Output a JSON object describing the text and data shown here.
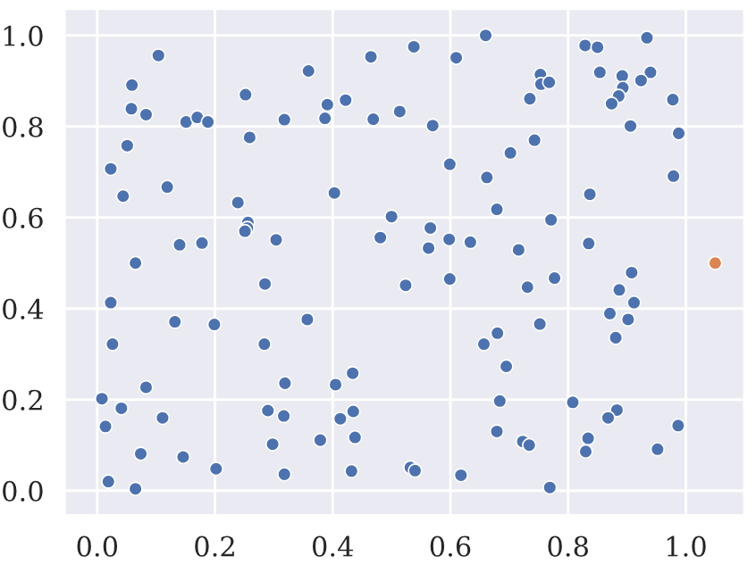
{
  "chart_data": {
    "type": "scatter",
    "xlim": [
      -0.056,
      1.1
    ],
    "ylim": [
      -0.055,
      1.059
    ],
    "xticks": [
      {
        "value": 0,
        "label": "0.0"
      },
      0.2,
      0.4,
      0.6,
      0.8,
      {
        "value": 1,
        "label": "1.0"
      }
    ],
    "yticks": [
      {
        "value": 0,
        "label": "0.0"
      },
      0.2,
      0.4,
      0.6,
      0.8,
      {
        "value": 1,
        "label": "1.0"
      }
    ],
    "grid": true,
    "marker": "circle",
    "series": [
      {
        "color": "#4c72b0",
        "x": [
          0.104,
          0.059,
          0.058,
          0.083,
          0.151,
          0.17,
          0.188,
          0.252,
          0.259,
          0.318,
          0.359,
          0.391,
          0.387,
          0.422,
          0.465,
          0.469,
          0.514,
          0.051,
          0.023,
          0.044,
          0.119,
          0.239,
          0.403,
          0.5,
          0.256,
          0.255,
          0.251,
          0.14,
          0.178,
          0.304,
          0.481,
          0.065,
          0.538,
          0.61,
          0.66,
          0.753,
          0.754,
          0.768,
          0.735,
          0.829,
          0.85,
          0.934,
          0.854,
          0.892,
          0.94,
          0.924,
          0.893,
          0.886,
          0.874,
          0.978,
          0.57,
          0.906,
          0.988,
          0.743,
          0.702,
          0.599,
          0.662,
          0.979,
          0.837,
          0.679,
          0.771,
          0.566,
          0.598,
          0.634,
          0.563,
          0.716,
          0.835,
          0.908,
          0.599,
          0.777,
          0.023,
          0.132,
          0.199,
          0.285,
          0.357,
          0.524,
          0.026,
          0.284,
          0.083,
          0.319,
          0.405,
          0.434,
          0.008,
          0.041,
          0.014,
          0.111,
          0.29,
          0.317,
          0.413,
          0.435,
          0.438,
          0.379,
          0.298,
          0.074,
          0.146,
          0.202,
          0.318,
          0.432,
          0.019,
          0.065,
          0.731,
          0.887,
          0.912,
          0.871,
          0.902,
          0.752,
          0.68,
          0.657,
          0.881,
          0.695,
          0.684,
          0.808,
          0.883,
          0.868,
          0.987,
          0.679,
          0.834,
          0.723,
          0.734,
          0.83,
          0.952,
          0.532,
          0.54,
          0.618,
          0.769
        ],
        "values": [
          0.956,
          0.891,
          0.839,
          0.826,
          0.81,
          0.82,
          0.81,
          0.87,
          0.776,
          0.815,
          0.922,
          0.848,
          0.818,
          0.858,
          0.953,
          0.816,
          0.833,
          0.758,
          0.707,
          0.647,
          0.667,
          0.633,
          0.654,
          0.602,
          0.589,
          0.577,
          0.57,
          0.54,
          0.544,
          0.551,
          0.556,
          0.5,
          0.975,
          0.951,
          1.0,
          0.914,
          0.893,
          0.897,
          0.861,
          0.978,
          0.974,
          0.995,
          0.919,
          0.911,
          0.919,
          0.901,
          0.885,
          0.867,
          0.85,
          0.859,
          0.802,
          0.801,
          0.785,
          0.77,
          0.742,
          0.717,
          0.688,
          0.691,
          0.651,
          0.618,
          0.595,
          0.577,
          0.552,
          0.546,
          0.533,
          0.529,
          0.543,
          0.479,
          0.465,
          0.467,
          0.413,
          0.371,
          0.365,
          0.454,
          0.376,
          0.451,
          0.322,
          0.322,
          0.227,
          0.236,
          0.233,
          0.258,
          0.202,
          0.181,
          0.141,
          0.16,
          0.176,
          0.164,
          0.158,
          0.174,
          0.117,
          0.111,
          0.102,
          0.081,
          0.074,
          0.048,
          0.036,
          0.043,
          0.02,
          0.004,
          0.447,
          0.441,
          0.413,
          0.389,
          0.376,
          0.366,
          0.346,
          0.322,
          0.336,
          0.273,
          0.197,
          0.194,
          0.177,
          0.16,
          0.143,
          0.13,
          0.115,
          0.108,
          0.1,
          0.086,
          0.091,
          0.051,
          0.044,
          0.034,
          0.007
        ]
      },
      {
        "color": "#dd8452",
        "x": [
          1.05
        ],
        "values": [
          0.5
        ]
      }
    ]
  }
}
